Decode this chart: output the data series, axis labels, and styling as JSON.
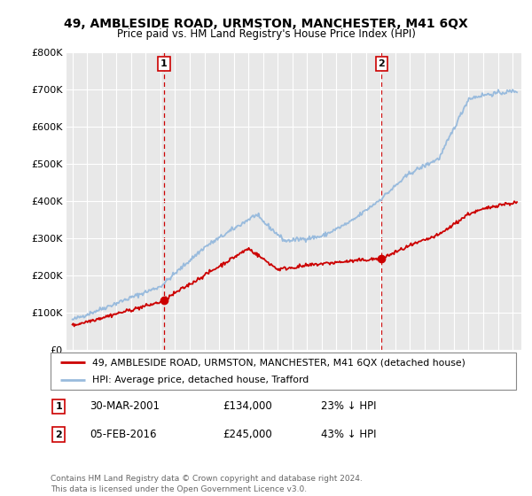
{
  "title": "49, AMBLESIDE ROAD, URMSTON, MANCHESTER, M41 6QX",
  "subtitle": "Price paid vs. HM Land Registry's House Price Index (HPI)",
  "ylim": [
    0,
    800000
  ],
  "yticks": [
    0,
    100000,
    200000,
    300000,
    400000,
    500000,
    600000,
    700000,
    800000
  ],
  "ytick_labels": [
    "£0",
    "£100K",
    "£200K",
    "£300K",
    "£400K",
    "£500K",
    "£600K",
    "£700K",
    "£800K"
  ],
  "xlim_start": 1994.6,
  "xlim_end": 2025.6,
  "red_color": "#cc0000",
  "blue_color": "#99bbdd",
  "vline_color": "#cc0000",
  "marker1_x": 2001.25,
  "marker1_y": 134000,
  "marker1_label": "1",
  "marker2_x": 2016.08,
  "marker2_y": 245000,
  "marker2_label": "2",
  "legend_line1": "49, AMBLESIDE ROAD, URMSTON, MANCHESTER, M41 6QX (detached house)",
  "legend_line2": "HPI: Average price, detached house, Trafford",
  "table_row1": [
    "1",
    "30-MAR-2001",
    "£134,000",
    "23% ↓ HPI"
  ],
  "table_row2": [
    "2",
    "05-FEB-2016",
    "£245,000",
    "43% ↓ HPI"
  ],
  "copyright": "Contains HM Land Registry data © Crown copyright and database right 2024.\nThis data is licensed under the Open Government Licence v3.0.",
  "bg_color": "#ffffff",
  "plot_bg_color": "#e8e8e8"
}
